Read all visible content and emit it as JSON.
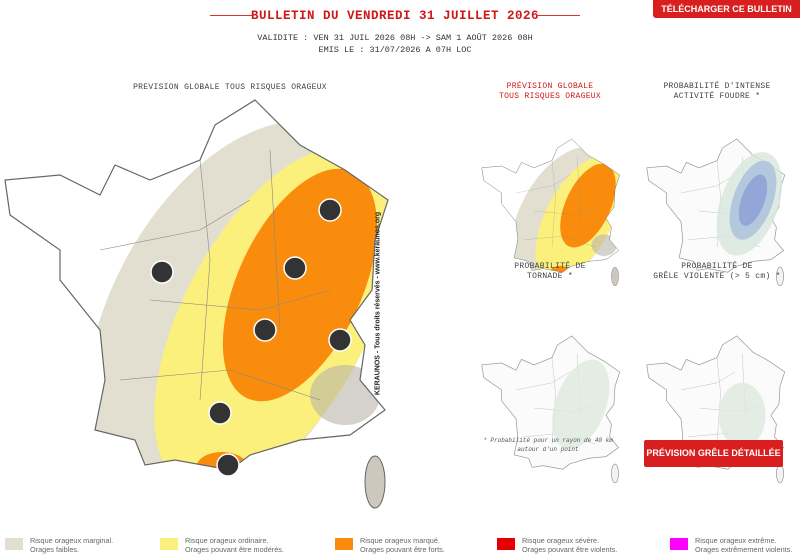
{
  "header": {
    "title": "BULLETIN DU VENDREDI 31 JUILLET 2026",
    "download_button": "TÉLÉCHARGER CE BULLETIN",
    "validity": "VALIDITE : VEN 31 JUIL 2026 08H -> SAM 1 AOÛT 2026 08H",
    "issued": "EMIS LE : 31/07/2026 A 07H LOC"
  },
  "main_map": {
    "title": "PREVISION GLOBALE TOUS RISQUES ORAGEUX",
    "credit": "KERAUNOS - Tous droits réservés - www.keraunos.org"
  },
  "mini_maps": [
    {
      "title_lines": [
        "PRÉVISION GLOBALE",
        "TOUS RISQUES ORAGEUX"
      ]
    },
    {
      "title_lines": [
        "PROBABILITÉ D'INTENSE",
        "ACTIVITÉ FOUDRE *"
      ]
    },
    {
      "title_lines": [
        "PROBABILITÉ DE",
        "TORNADE *"
      ]
    },
    {
      "title_lines": [
        "PROBABILITÉ DE",
        "GRÊLE VIOLENTE (> 5 cm) *"
      ]
    }
  ],
  "footnote_lines": [
    "* Probabilité pour un rayon de 40 km",
    "autour d'un point"
  ],
  "hail_button": "PRÉVISION GRÊLE DÉTAILLÉE",
  "legend": [
    {
      "label": "Risque orageux marginal.",
      "description": "Orages faibles.",
      "color": "#e2dfd0"
    },
    {
      "label": "Risque orageux ordinaire.",
      "description": "Orages pouvant être modérés.",
      "color": "#fbf07c"
    },
    {
      "label": "Risque orageux marqué.",
      "description": "Orages pouvant être forts.",
      "color": "#f98c0c"
    },
    {
      "label": "Risque orageux sévère.",
      "description": "Orages pouvant être violents.",
      "color": "#e50000"
    },
    {
      "label": "Risque orageux extrême.",
      "description": "Orages extrêmement violents.",
      "color": "#ff00ff"
    }
  ]
}
